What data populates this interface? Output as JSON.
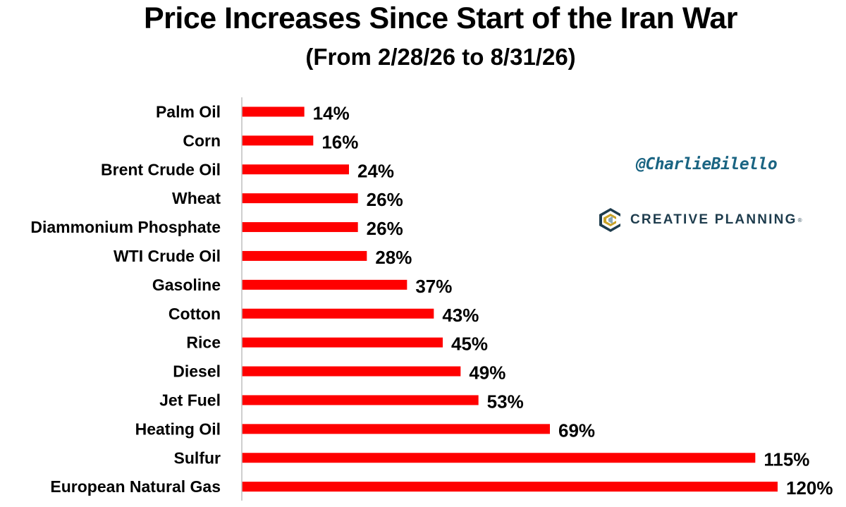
{
  "title": "Price Increases Since Start of the Iran War",
  "subtitle": "(From 2/28/26 to 8/31/26)",
  "watermark": {
    "handle": "@CharlieBilello",
    "brand": "CREATIVE PLANNING",
    "brand_mark": "®",
    "logo_icon": "creative-planning-logo-icon"
  },
  "colors": {
    "bar": "#ff0000",
    "text": "#000000",
    "handle": "#1a6482",
    "brand": "#1e3c4d",
    "axis": "#bfbfbf"
  },
  "chart_data": {
    "type": "bar",
    "orientation": "horizontal",
    "title": "Price Increases Since Start of the Iran War",
    "subtitle": "(From 2/28/26 to 8/31/26)",
    "categories": [
      "Palm Oil",
      "Corn",
      "Brent Crude Oil",
      "Wheat",
      "Diammonium Phosphate",
      "WTI Crude Oil",
      "Gasoline",
      "Cotton",
      "Rice",
      "Diesel",
      "Jet Fuel",
      "Heating Oil",
      "Sulfur",
      "European Natural Gas"
    ],
    "values": [
      14,
      16,
      24,
      26,
      26,
      28,
      37,
      43,
      45,
      49,
      53,
      69,
      115,
      120
    ],
    "value_labels": [
      "14%",
      "16%",
      "24%",
      "26%",
      "26%",
      "28%",
      "37%",
      "43%",
      "45%",
      "49%",
      "53%",
      "69%",
      "115%",
      "120%"
    ],
    "unit": "%",
    "xlim": [
      0,
      120
    ],
    "grid": false,
    "legend": "none"
  }
}
